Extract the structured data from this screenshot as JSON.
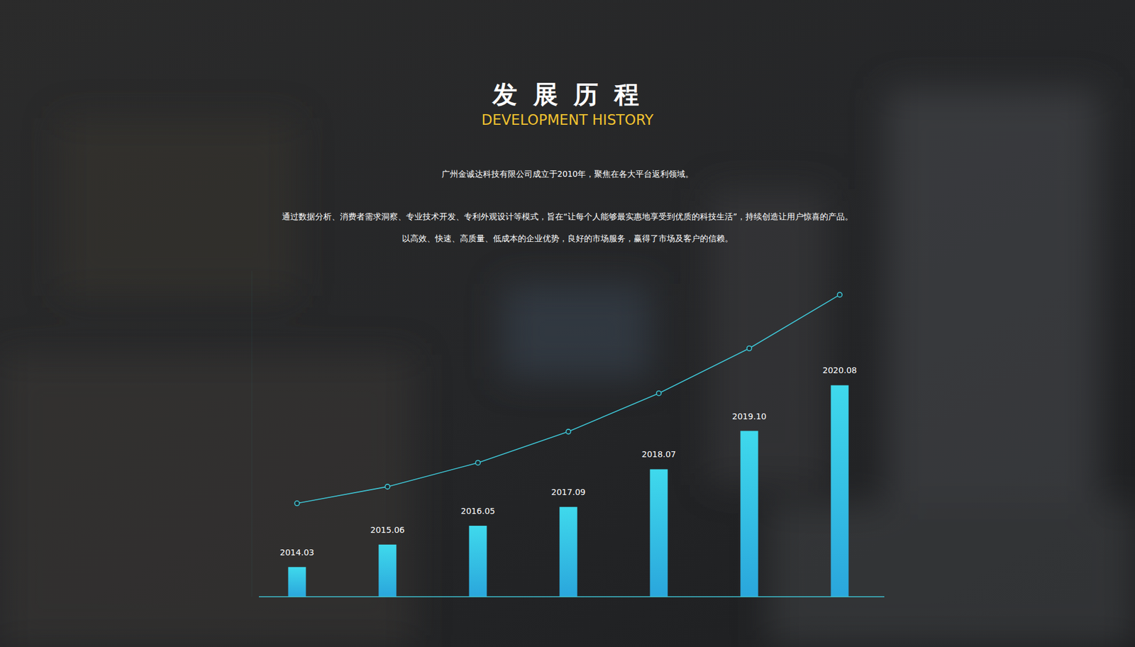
{
  "chart_data": {
    "type": "bar",
    "title": "发 展 历 程",
    "subtitle": "DEVELOPMENT HISTORY",
    "annotations": [
      "广州金诚达科技有限公司成立于2010年，聚焦在各大平台返利领域。",
      "通过数据分析、消费者需求洞察、专业技术开发、专利外观设计等模式，旨在“让每个人能够最实惠地享受到优质的科技生活”，持续创造让用户惊喜的产品。",
      "以高效、快速、高质量、低成本的企业优势，良好的市场服务，赢得了市场及客户的信赖。"
    ],
    "categories": [
      "2014.03",
      "2015.06",
      "2016.05",
      "2017.09",
      "2018.07",
      "2019.10",
      "2020.08"
    ],
    "series": [
      {
        "type": "bar",
        "color": "#3fd9ec",
        "values": [
          41,
          72,
          98,
          124,
          176,
          229,
          292
        ]
      },
      {
        "type": "line",
        "color": "#3fc9d9",
        "marker": "circle",
        "values": [
          129,
          152,
          185,
          228,
          281,
          343,
          417
        ]
      }
    ],
    "ylim": [
      0,
      450
    ],
    "tick_labels": false,
    "grid": false
  }
}
